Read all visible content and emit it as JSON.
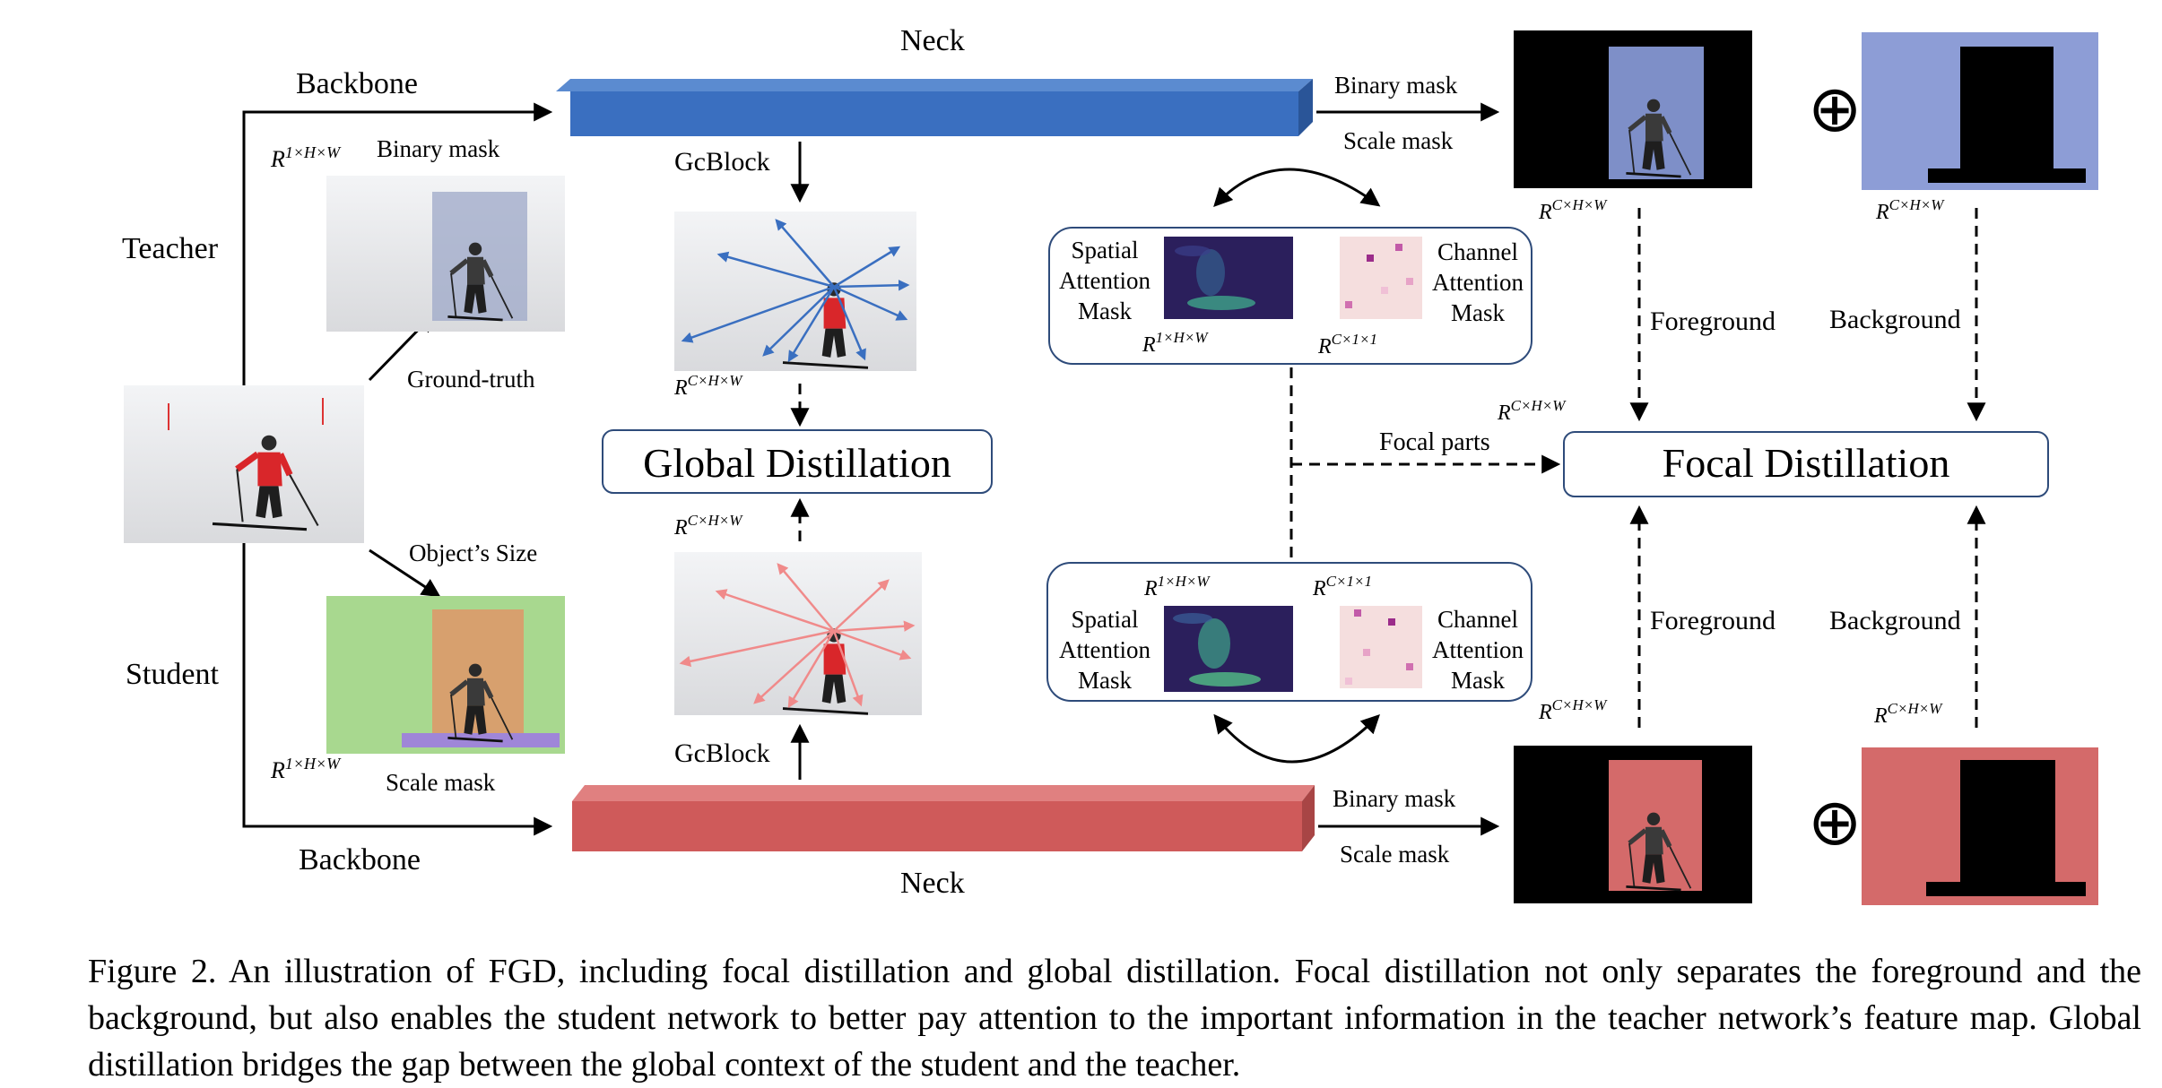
{
  "labels": {
    "neck_top": "Neck",
    "neck_bottom": "Neck",
    "backbone_top": "Backbone",
    "backbone_bottom": "Backbone",
    "teacher": "Teacher",
    "student": "Student",
    "binary_mask_left": "Binary mask",
    "ground_truth": "Ground-truth",
    "objects_size": "Object’s Size",
    "scale_mask_left": "Scale mask",
    "gcblock_top": "GcBlock",
    "gcblock_bottom": "GcBlock",
    "global_distillation": "Global Distillation",
    "focal_distillation": "Focal Distillation",
    "binary_mask_top_right": "Binary mask",
    "scale_mask_top_right": "Scale mask",
    "binary_mask_bottom_right": "Binary mask",
    "scale_mask_bottom_right": "Scale mask",
    "spatial_attention_mask": [
      "Spatial",
      "Attention",
      "Mask"
    ],
    "channel_attention_mask": [
      "Channel",
      "Attention",
      "Mask"
    ],
    "foreground": "Foreground",
    "background": "Background",
    "focal_parts": "Focal parts",
    "oplus": "⊕"
  },
  "math": {
    "r1hw": "R",
    "r1hw_sup": "1×H×W",
    "rchw_sup": "C×H×W",
    "rc11_sup": "C×1×1"
  },
  "colors": {
    "teacher_blue": "#3a6fc0",
    "teacher_blue_dark": "#2a5598",
    "student_red": "#cf5a5a",
    "student_red_dark": "#a84545",
    "snow": "#e9eaec",
    "skier_jacket": "#d9262a",
    "heatmap_bg": "#2b1f5c",
    "heatmap_hot": "#58d68d",
    "channel_pink": "#f5dede",
    "channel_dark": "#9b2c8a"
  },
  "caption": "Figure 2. An illustration of FGD, including focal distillation and global distillation. Focal distillation not only separates the foreground and the background, but also enables the student network to better pay attention to the important information in the teacher network’s feature map. Global distillation bridges the gap between the global context of the student and the teacher."
}
